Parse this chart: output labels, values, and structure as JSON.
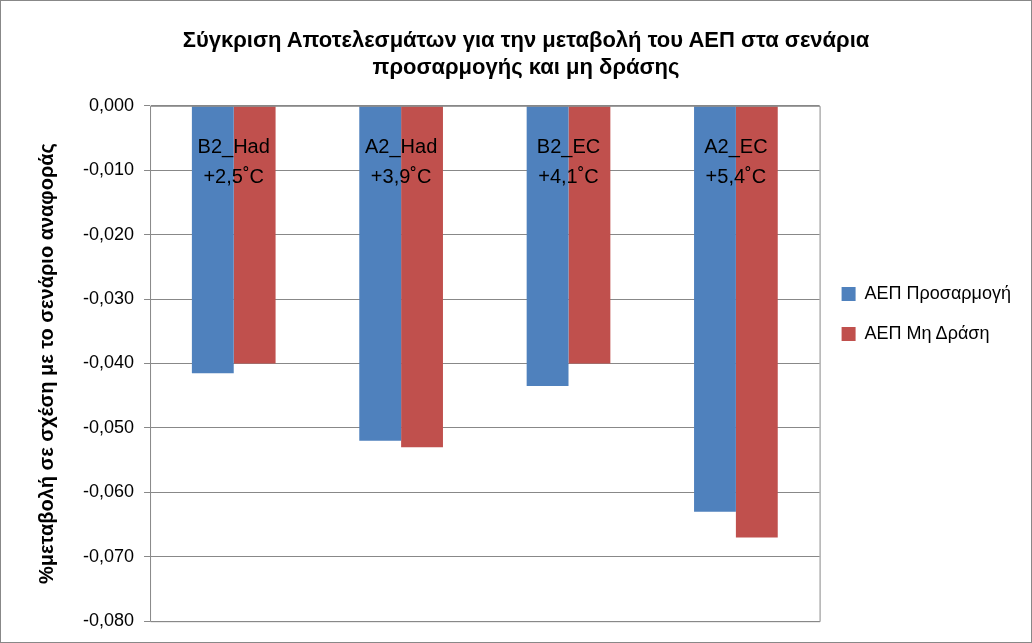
{
  "chart_data": {
    "type": "bar",
    "title": "Σύγκριση Αποτελεσμάτων για την μεταβολή του ΑΕΠ στα σενάρια προσαρμογής και μη δράσης",
    "ylabel": "%μεταβολή σε σχέση με το σενάριο αναφοράς",
    "categories": [
      "B2_Had +2,5˚C",
      "A2_Had +3,9˚C",
      "B2_EC +4,1˚C",
      "A2_EC +5,4˚C"
    ],
    "series": [
      {
        "name": "ΑΕΠ Προσαρμογή",
        "color": "#4f81bd",
        "values": [
          -0.0415,
          -0.052,
          -0.0435,
          -0.063
        ]
      },
      {
        "name": "ΑΕΠ Μη Δράση",
        "color": "#c0504d",
        "values": [
          -0.04,
          -0.053,
          -0.04,
          -0.067
        ]
      }
    ],
    "ylim": [
      -0.08,
      0
    ],
    "yticks": [
      {
        "value": 0,
        "label": "0,000"
      },
      {
        "value": -0.01,
        "label": "-0,010"
      },
      {
        "value": -0.02,
        "label": "-0,020"
      },
      {
        "value": -0.03,
        "label": "-0,030"
      },
      {
        "value": -0.04,
        "label": "-0,040"
      },
      {
        "value": -0.05,
        "label": "-0,050"
      },
      {
        "value": -0.06,
        "label": "-0,060"
      },
      {
        "value": -0.07,
        "label": "-0,070"
      },
      {
        "value": -0.08,
        "label": "-0,080"
      }
    ],
    "grid": "y",
    "legend": "right"
  }
}
